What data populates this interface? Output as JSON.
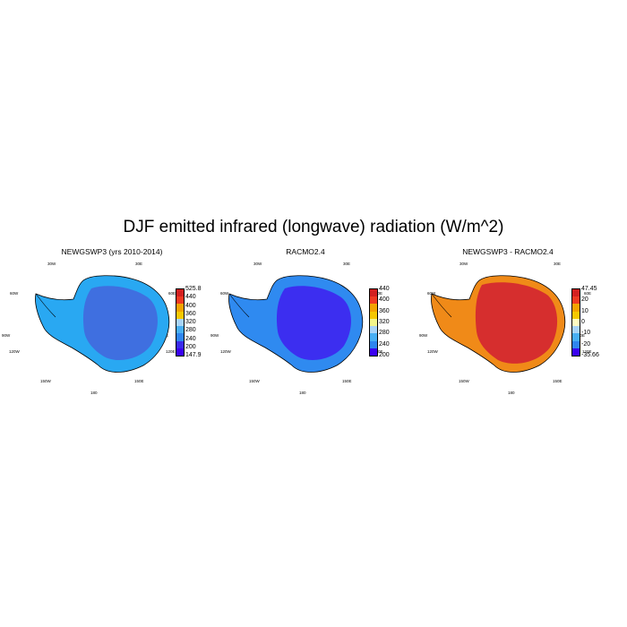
{
  "title": "DJF emitted infrared (longwave) radiation (W/m^2)",
  "graticule_labels": [
    "30W",
    "30E",
    "60W",
    "60E",
    "90W",
    "90E",
    "120W",
    "120E",
    "150W",
    "150E",
    "180"
  ],
  "panels": [
    {
      "title": "NEWGSWP3 (yrs 2010-2014)",
      "interior_color": "#3f6fe0",
      "coast_color": "#29a8f2",
      "colorbar": {
        "colors": [
          "#d32020",
          "#f03a22",
          "#f4a300",
          "#f6c800",
          "#a8d4f8",
          "#48aff4",
          "#2f86f0",
          "#3a2bea",
          "#3a00f0"
        ],
        "labels": [
          "525.8",
          "440",
          "400",
          "360",
          "320",
          "280",
          "240",
          "200",
          "147.9"
        ]
      }
    },
    {
      "title": "RACMO2.4",
      "interior_color": "#3c2ef0",
      "coast_color": "#2f8af0",
      "colorbar": {
        "colors": [
          "#d32020",
          "#f03a22",
          "#f4a300",
          "#f6c800",
          "#f3f58a",
          "#a8d4f8",
          "#48aff4",
          "#2f86f0",
          "#3a00f0"
        ],
        "labels": [
          "440",
          "400",
          "360",
          "320",
          "280",
          "240",
          "200"
        ]
      }
    },
    {
      "title": "NEWGSWP3 - RACMO2.4",
      "interior_color": "#d62e2e",
      "coast_color": "#f08a18",
      "colorbar": {
        "colors": [
          "#d32020",
          "#f03a22",
          "#f4a300",
          "#f6c800",
          "#fffcc0",
          "#a8d4f8",
          "#48aff4",
          "#2f86f0",
          "#3a00f0"
        ],
        "labels": [
          "47.45",
          "20",
          "10",
          "0",
          "-10",
          "-20",
          "-35.66"
        ]
      }
    }
  ]
}
